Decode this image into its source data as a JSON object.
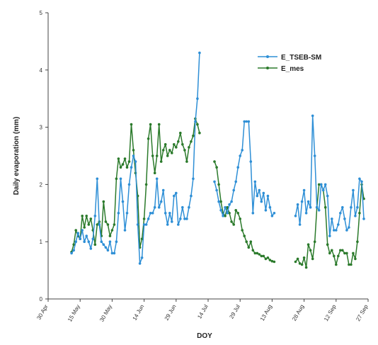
{
  "chart_data": {
    "type": "line",
    "xlabel": "DOY",
    "ylabel": "Daily evaporation (mm)",
    "x_tick_labels": [
      "30 Apr",
      "15 May",
      "30 May",
      "14 Jun",
      "29 Jun",
      "14 Jul",
      "29 Jul",
      "13 Aug",
      "28 Aug",
      "12 Sep",
      "27 Sep"
    ],
    "x_tick_dates": [
      "2000-04-30",
      "2000-05-15",
      "2000-05-30",
      "2000-06-14",
      "2000-06-29",
      "2000-07-14",
      "2000-07-29",
      "2000-08-13",
      "2000-08-28",
      "2000-09-12",
      "2000-09-27"
    ],
    "xlim": [
      "2000-04-30",
      "2000-09-27"
    ],
    "y_ticks": [
      0,
      1,
      2,
      3,
      4,
      5
    ],
    "ylim": [
      0,
      5
    ],
    "grid": false,
    "legend_position": "top-right",
    "series": [
      {
        "name": "E_TSEB-SM",
        "color": "#2e8fd6",
        "segments": [
          [
            [
              "2000-05-11",
              0.8
            ],
            [
              "2000-05-12",
              0.85
            ],
            [
              "2000-05-13",
              1.0
            ],
            [
              "2000-05-14",
              1.15
            ],
            [
              "2000-05-15",
              1.05
            ],
            [
              "2000-05-16",
              1.2
            ],
            [
              "2000-05-17",
              1.0
            ],
            [
              "2000-05-18",
              1.1
            ],
            [
              "2000-05-19",
              1.0
            ],
            [
              "2000-05-20",
              0.88
            ],
            [
              "2000-05-21",
              1.05
            ],
            [
              "2000-05-22",
              1.45
            ],
            [
              "2000-05-23",
              2.1
            ],
            [
              "2000-05-24",
              1.3
            ],
            [
              "2000-05-25",
              1.0
            ],
            [
              "2000-05-26",
              0.95
            ],
            [
              "2000-05-27",
              0.9
            ],
            [
              "2000-05-28",
              0.85
            ],
            [
              "2000-05-29",
              1.0
            ],
            [
              "2000-05-30",
              0.8
            ],
            [
              "2000-05-31",
              0.8
            ],
            [
              "2000-06-01",
              1.0
            ],
            [
              "2000-06-02",
              1.5
            ],
            [
              "2000-06-03",
              2.1
            ],
            [
              "2000-06-04",
              1.7
            ],
            [
              "2000-06-05",
              1.2
            ],
            [
              "2000-06-06",
              1.5
            ],
            [
              "2000-06-07",
              2.0
            ],
            [
              "2000-06-08",
              2.3
            ],
            [
              "2000-06-09",
              2.5
            ],
            [
              "2000-06-10",
              2.4
            ],
            [
              "2000-06-11",
              1.3
            ],
            [
              "2000-06-12",
              0.62
            ],
            [
              "2000-06-13",
              0.72
            ],
            [
              "2000-06-14",
              1.3
            ],
            [
              "2000-06-15",
              1.3
            ],
            [
              "2000-06-16",
              1.4
            ],
            [
              "2000-06-17",
              1.5
            ],
            [
              "2000-06-18",
              1.5
            ],
            [
              "2000-06-19",
              1.6
            ],
            [
              "2000-06-20",
              2.1
            ],
            [
              "2000-06-21",
              1.6
            ],
            [
              "2000-06-22",
              1.7
            ],
            [
              "2000-06-23",
              1.9
            ],
            [
              "2000-06-24",
              1.5
            ],
            [
              "2000-06-25",
              1.3
            ],
            [
              "2000-06-26",
              1.5
            ],
            [
              "2000-06-27",
              1.35
            ],
            [
              "2000-06-28",
              1.8
            ],
            [
              "2000-06-29",
              1.85
            ],
            [
              "2000-06-30",
              1.3
            ],
            [
              "2000-07-01",
              1.4
            ],
            [
              "2000-07-02",
              1.6
            ],
            [
              "2000-07-03",
              1.4
            ],
            [
              "2000-07-04",
              1.4
            ],
            [
              "2000-07-05",
              1.6
            ],
            [
              "2000-07-06",
              1.8
            ],
            [
              "2000-07-07",
              2.1
            ],
            [
              "2000-07-08",
              3.1
            ],
            [
              "2000-07-09",
              3.5
            ],
            [
              "2000-07-10",
              4.3
            ]
          ],
          [
            [
              "2000-07-17",
              2.05
            ],
            [
              "2000-07-18",
              1.9
            ],
            [
              "2000-07-19",
              1.7
            ],
            [
              "2000-07-20",
              1.55
            ],
            [
              "2000-07-21",
              1.45
            ],
            [
              "2000-07-22",
              1.6
            ],
            [
              "2000-07-23",
              1.5
            ],
            [
              "2000-07-24",
              1.65
            ],
            [
              "2000-07-25",
              1.7
            ],
            [
              "2000-07-26",
              1.9
            ],
            [
              "2000-07-27",
              2.05
            ],
            [
              "2000-07-28",
              2.3
            ],
            [
              "2000-07-29",
              2.5
            ],
            [
              "2000-07-30",
              2.6
            ],
            [
              "2000-07-31",
              3.1
            ],
            [
              "2000-08-01",
              3.1
            ],
            [
              "2000-08-02",
              3.1
            ],
            [
              "2000-08-03",
              2.4
            ],
            [
              "2000-08-04",
              1.5
            ],
            [
              "2000-08-05",
              2.05
            ],
            [
              "2000-08-06",
              1.8
            ],
            [
              "2000-08-07",
              1.9
            ],
            [
              "2000-08-08",
              1.7
            ],
            [
              "2000-08-09",
              1.85
            ],
            [
              "2000-08-10",
              1.55
            ],
            [
              "2000-08-11",
              1.8
            ],
            [
              "2000-08-12",
              1.6
            ],
            [
              "2000-08-13",
              1.45
            ],
            [
              "2000-08-14",
              1.5
            ]
          ],
          [
            [
              "2000-08-24",
              1.45
            ],
            [
              "2000-08-25",
              1.65
            ],
            [
              "2000-08-26",
              1.3
            ],
            [
              "2000-08-27",
              1.7
            ],
            [
              "2000-08-28",
              1.9
            ],
            [
              "2000-08-29",
              1.5
            ],
            [
              "2000-08-30",
              1.7
            ],
            [
              "2000-08-31",
              1.6
            ],
            [
              "2000-09-01",
              3.2
            ],
            [
              "2000-09-02",
              2.5
            ],
            [
              "2000-09-03",
              1.6
            ],
            [
              "2000-09-04",
              1.55
            ],
            [
              "2000-09-05",
              2.0
            ],
            [
              "2000-09-06",
              1.9
            ],
            [
              "2000-09-07",
              2.0
            ],
            [
              "2000-09-08",
              1.8
            ],
            [
              "2000-09-09",
              1.1
            ],
            [
              "2000-09-10",
              1.4
            ],
            [
              "2000-09-11",
              1.2
            ],
            [
              "2000-09-12",
              1.2
            ],
            [
              "2000-09-13",
              1.3
            ],
            [
              "2000-09-14",
              1.5
            ],
            [
              "2000-09-15",
              1.6
            ],
            [
              "2000-09-16",
              1.4
            ],
            [
              "2000-09-17",
              1.2
            ],
            [
              "2000-09-18",
              1.25
            ],
            [
              "2000-09-19",
              1.6
            ],
            [
              "2000-09-20",
              1.9
            ],
            [
              "2000-09-21",
              1.45
            ],
            [
              "2000-09-22",
              1.6
            ],
            [
              "2000-09-23",
              2.1
            ],
            [
              "2000-09-24",
              2.05
            ],
            [
              "2000-09-25",
              1.4
            ]
          ]
        ]
      },
      {
        "name": "E_mes",
        "color": "#2b7a2b",
        "segments": [
          [
            [
              "2000-05-11",
              0.82
            ],
            [
              "2000-05-12",
              0.95
            ],
            [
              "2000-05-13",
              1.2
            ],
            [
              "2000-05-14",
              1.1
            ],
            [
              "2000-05-15",
              1.05
            ],
            [
              "2000-05-16",
              1.45
            ],
            [
              "2000-05-17",
              1.25
            ],
            [
              "2000-05-18",
              1.45
            ],
            [
              "2000-05-19",
              1.3
            ],
            [
              "2000-05-20",
              1.4
            ],
            [
              "2000-05-21",
              1.2
            ],
            [
              "2000-05-22",
              0.95
            ],
            [
              "2000-05-23",
              1.3
            ],
            [
              "2000-05-24",
              1.35
            ],
            [
              "2000-05-25",
              1.1
            ],
            [
              "2000-05-26",
              1.7
            ],
            [
              "2000-05-27",
              1.35
            ],
            [
              "2000-05-28",
              1.3
            ],
            [
              "2000-05-29",
              1.1
            ],
            [
              "2000-05-30",
              1.2
            ],
            [
              "2000-05-31",
              1.3
            ],
            [
              "2000-06-01",
              2.1
            ],
            [
              "2000-06-02",
              2.45
            ],
            [
              "2000-06-03",
              2.3
            ],
            [
              "2000-06-04",
              2.35
            ],
            [
              "2000-06-05",
              2.45
            ],
            [
              "2000-06-06",
              2.3
            ],
            [
              "2000-06-07",
              2.4
            ],
            [
              "2000-06-08",
              3.05
            ],
            [
              "2000-06-09",
              2.6
            ],
            [
              "2000-06-10",
              2.2
            ],
            [
              "2000-06-11",
              1.8
            ],
            [
              "2000-06-12",
              0.9
            ],
            [
              "2000-06-13",
              1.05
            ],
            [
              "2000-06-14",
              1.4
            ],
            [
              "2000-06-15",
              2.0
            ],
            [
              "2000-06-16",
              2.8
            ],
            [
              "2000-06-17",
              3.05
            ],
            [
              "2000-06-18",
              2.5
            ],
            [
              "2000-06-19",
              2.2
            ],
            [
              "2000-06-20",
              2.5
            ],
            [
              "2000-06-21",
              3.05
            ],
            [
              "2000-06-22",
              2.4
            ],
            [
              "2000-06-23",
              2.6
            ],
            [
              "2000-06-24",
              2.7
            ],
            [
              "2000-06-25",
              2.5
            ],
            [
              "2000-06-26",
              2.6
            ],
            [
              "2000-06-27",
              2.55
            ],
            [
              "2000-06-28",
              2.7
            ],
            [
              "2000-06-29",
              2.65
            ],
            [
              "2000-06-30",
              2.75
            ],
            [
              "2000-07-01",
              2.9
            ],
            [
              "2000-07-02",
              2.7
            ],
            [
              "2000-07-03",
              2.6
            ],
            [
              "2000-07-04",
              2.4
            ],
            [
              "2000-07-05",
              2.65
            ],
            [
              "2000-07-06",
              2.75
            ],
            [
              "2000-07-07",
              2.85
            ],
            [
              "2000-07-08",
              3.15
            ],
            [
              "2000-07-09",
              3.05
            ],
            [
              "2000-07-10",
              2.9
            ]
          ],
          [
            [
              "2000-07-17",
              2.4
            ],
            [
              "2000-07-18",
              2.3
            ],
            [
              "2000-07-19",
              2.0
            ],
            [
              "2000-07-20",
              1.7
            ],
            [
              "2000-07-21",
              1.5
            ],
            [
              "2000-07-22",
              1.45
            ],
            [
              "2000-07-23",
              1.6
            ],
            [
              "2000-07-24",
              1.5
            ],
            [
              "2000-07-25",
              1.35
            ],
            [
              "2000-07-26",
              1.3
            ],
            [
              "2000-07-27",
              1.55
            ],
            [
              "2000-07-28",
              1.5
            ],
            [
              "2000-07-29",
              1.4
            ],
            [
              "2000-07-30",
              1.2
            ],
            [
              "2000-07-31",
              1.1
            ],
            [
              "2000-08-01",
              1.0
            ],
            [
              "2000-08-02",
              0.9
            ],
            [
              "2000-08-03",
              1.0
            ],
            [
              "2000-08-04",
              0.85
            ],
            [
              "2000-08-05",
              0.8
            ],
            [
              "2000-08-06",
              0.8
            ],
            [
              "2000-08-07",
              0.78
            ],
            [
              "2000-08-08",
              0.75
            ],
            [
              "2000-08-09",
              0.75
            ],
            [
              "2000-08-10",
              0.7
            ],
            [
              "2000-08-11",
              0.72
            ],
            [
              "2000-08-12",
              0.68
            ],
            [
              "2000-08-13",
              0.66
            ],
            [
              "2000-08-14",
              0.65
            ]
          ],
          [
            [
              "2000-08-24",
              0.65
            ],
            [
              "2000-08-25",
              0.7
            ],
            [
              "2000-08-26",
              0.62
            ],
            [
              "2000-08-27",
              0.6
            ],
            [
              "2000-08-28",
              0.72
            ],
            [
              "2000-08-29",
              0.55
            ],
            [
              "2000-08-30",
              0.95
            ],
            [
              "2000-08-31",
              0.85
            ],
            [
              "2000-09-01",
              0.7
            ],
            [
              "2000-09-02",
              1.0
            ],
            [
              "2000-09-03",
              1.6
            ],
            [
              "2000-09-04",
              2.0
            ],
            [
              "2000-09-05",
              2.0
            ],
            [
              "2000-09-06",
              1.9
            ],
            [
              "2000-09-07",
              1.6
            ],
            [
              "2000-09-08",
              0.95
            ],
            [
              "2000-09-09",
              0.8
            ],
            [
              "2000-09-10",
              0.85
            ],
            [
              "2000-09-11",
              0.75
            ],
            [
              "2000-09-12",
              0.6
            ],
            [
              "2000-09-13",
              0.75
            ],
            [
              "2000-09-14",
              0.85
            ],
            [
              "2000-09-15",
              0.85
            ],
            [
              "2000-09-16",
              0.8
            ],
            [
              "2000-09-17",
              0.8
            ],
            [
              "2000-09-18",
              0.6
            ],
            [
              "2000-09-19",
              0.6
            ],
            [
              "2000-09-20",
              0.8
            ],
            [
              "2000-09-21",
              0.7
            ],
            [
              "2000-09-22",
              1.0
            ],
            [
              "2000-09-23",
              1.5
            ],
            [
              "2000-09-24",
              2.0
            ],
            [
              "2000-09-25",
              1.75
            ]
          ]
        ]
      }
    ]
  }
}
